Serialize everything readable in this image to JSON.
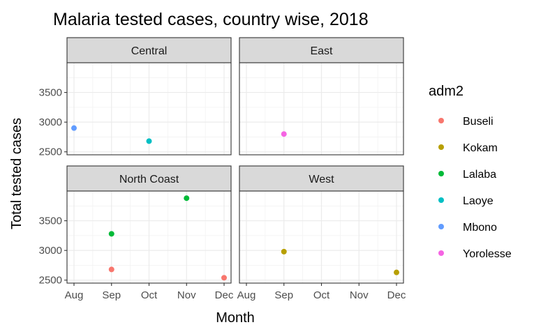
{
  "chart_data": {
    "type": "scatter",
    "title": "Malaria tested cases, country wise, 2018",
    "xlabel": "Month",
    "ylabel": "Total tested cases",
    "x_categories": [
      "Aug",
      "Sep",
      "Oct",
      "Nov",
      "Dec"
    ],
    "y_ticks": [
      2500,
      3000,
      3500
    ],
    "ylim": [
      2450,
      4000
    ],
    "grid": true,
    "legend": {
      "title": "adm2",
      "position": "right",
      "entries": [
        {
          "name": "Buseli",
          "color": "#F8766D"
        },
        {
          "name": "Kokam",
          "color": "#B79F00"
        },
        {
          "name": "Lalaba",
          "color": "#00BA38"
        },
        {
          "name": "Laoye",
          "color": "#00BFC4"
        },
        {
          "name": "Mbono",
          "color": "#619CFF"
        },
        {
          "name": "Yorolesse",
          "color": "#F564E3"
        }
      ]
    },
    "facets": [
      {
        "name": "Central",
        "points": [
          {
            "x": "Aug",
            "y": 2900,
            "series": "Mbono"
          },
          {
            "x": "Oct",
            "y": 2680,
            "series": "Laoye"
          }
        ]
      },
      {
        "name": "East",
        "points": [
          {
            "x": "Sep",
            "y": 2800,
            "series": "Yorolesse"
          }
        ]
      },
      {
        "name": "North Coast",
        "points": [
          {
            "x": "Sep",
            "y": 3280,
            "series": "Lalaba"
          },
          {
            "x": "Nov",
            "y": 3880,
            "series": "Lalaba"
          },
          {
            "x": "Sep",
            "y": 2680,
            "series": "Buseli"
          },
          {
            "x": "Dec",
            "y": 2540,
            "series": "Buseli"
          }
        ]
      },
      {
        "name": "West",
        "points": [
          {
            "x": "Sep",
            "y": 2980,
            "series": "Kokam"
          },
          {
            "x": "Dec",
            "y": 2630,
            "series": "Kokam"
          }
        ]
      }
    ]
  }
}
